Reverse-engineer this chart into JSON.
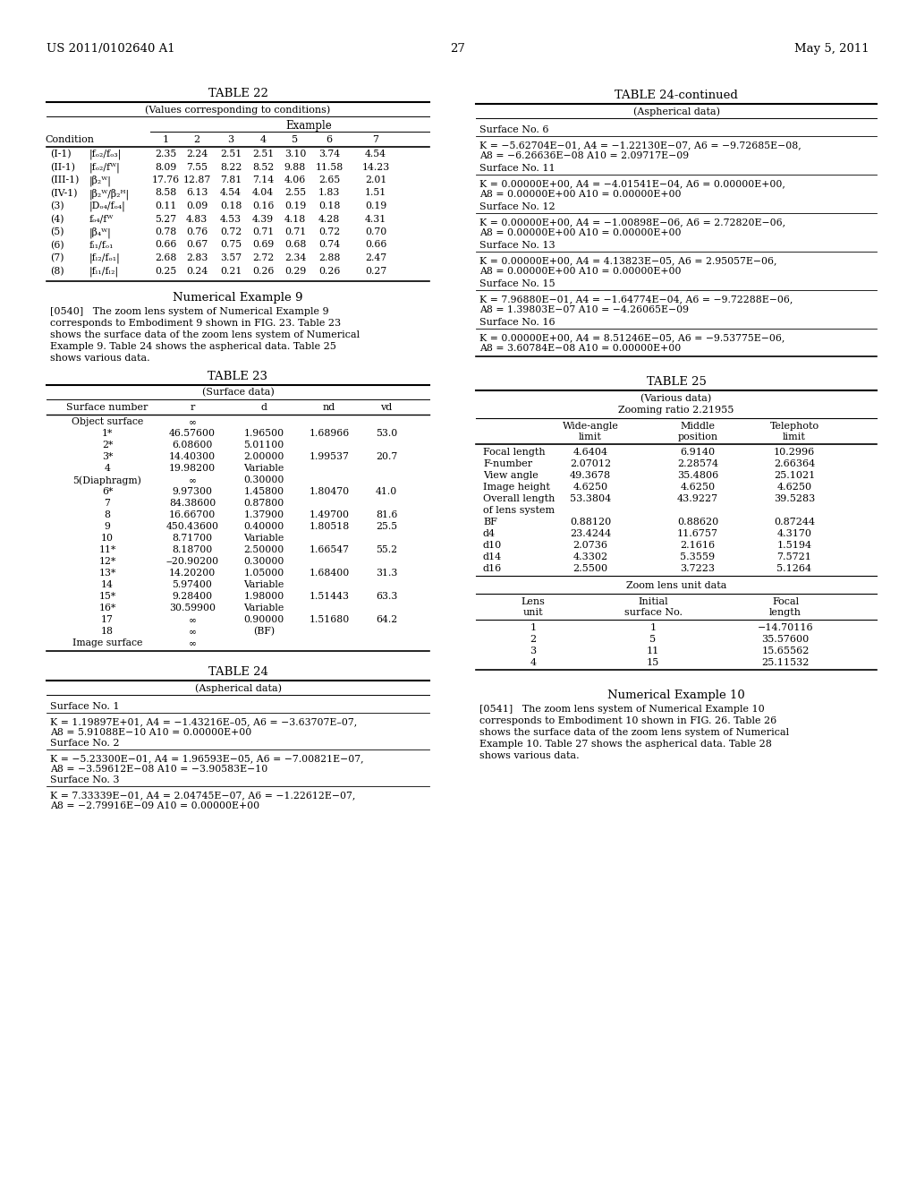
{
  "page_header_left": "US 2011/0102640 A1",
  "page_header_right": "May 5, 2011",
  "page_number": "27",
  "table22": {
    "title": "TABLE 22",
    "subtitle": "(Values corresponding to conditions)",
    "rows": [
      [
        "(I-1)",
        "|fₒ₂/fₒ₃|",
        "2.35",
        "2.24",
        "2.51",
        "2.51",
        "3.10",
        "3.74",
        "4.54"
      ],
      [
        "(II-1)",
        "|fₒ₂/fᵂ|",
        "8.09",
        "7.55",
        "8.22",
        "8.52",
        "9.88",
        "11.58",
        "14.23"
      ],
      [
        "(III-1)",
        "|β₂ᵂ|",
        "17.76",
        "12.87",
        "7.81",
        "7.14",
        "4.06",
        "2.65",
        "2.01"
      ],
      [
        "(IV-1)",
        "|β₂ᵂ/β₂ᴴ|",
        "8.58",
        "6.13",
        "4.54",
        "4.04",
        "2.55",
        "1.83",
        "1.51"
      ],
      [
        "(3)",
        "|Dₒ₄/fₒ₄|",
        "0.11",
        "0.09",
        "0.18",
        "0.16",
        "0.19",
        "0.18",
        "0.19"
      ],
      [
        "(4)",
        "fₒ₄/fᵂ",
        "5.27",
        "4.83",
        "4.53",
        "4.39",
        "4.18",
        "4.28",
        "4.31"
      ],
      [
        "(5)",
        "|β₄ᵂ|",
        "0.78",
        "0.76",
        "0.72",
        "0.71",
        "0.71",
        "0.72",
        "0.70"
      ],
      [
        "(6)",
        "fₗ₁/fₒ₁",
        "0.66",
        "0.67",
        "0.75",
        "0.69",
        "0.68",
        "0.74",
        "0.66"
      ],
      [
        "(7)",
        "|fₗ₂/fₒ₁|",
        "2.68",
        "2.83",
        "3.57",
        "2.72",
        "2.34",
        "2.88",
        "2.47"
      ],
      [
        "(8)",
        "|fₗ₁/fₗ₂|",
        "0.25",
        "0.24",
        "0.21",
        "0.26",
        "0.29",
        "0.26",
        "0.27"
      ]
    ]
  },
  "ne9_lines": [
    "[0540]   The zoom lens system of Numerical Example 9",
    "corresponds to Embodiment 9 shown in FIG. 23. Table 23",
    "shows the surface data of the zoom lens system of Numerical",
    "Example 9. Table 24 shows the aspherical data. Table 25",
    "shows various data."
  ],
  "table23_rows": [
    [
      "Object surface",
      "∞",
      "",
      "",
      ""
    ],
    [
      "1*",
      "46.57600",
      "1.96500",
      "1.68966",
      "53.0"
    ],
    [
      "2*",
      "6.08600",
      "5.01100",
      "",
      ""
    ],
    [
      "3*",
      "14.40300",
      "2.00000",
      "1.99537",
      "20.7"
    ],
    [
      "4",
      "19.98200",
      "Variable",
      "",
      ""
    ],
    [
      "5(Diaphragm)",
      "∞",
      "0.30000",
      "",
      ""
    ],
    [
      "6*",
      "9.97300",
      "1.45800",
      "1.80470",
      "41.0"
    ],
    [
      "7",
      "84.38600",
      "0.87800",
      "",
      ""
    ],
    [
      "8",
      "16.66700",
      "1.37900",
      "1.49700",
      "81.6"
    ],
    [
      "9",
      "450.43600",
      "0.40000",
      "1.80518",
      "25.5"
    ],
    [
      "10",
      "8.71700",
      "Variable",
      "",
      ""
    ],
    [
      "11*",
      "8.18700",
      "2.50000",
      "1.66547",
      "55.2"
    ],
    [
      "12*",
      "‒20.90200",
      "0.30000",
      "",
      ""
    ],
    [
      "13*",
      "14.20200",
      "1.05000",
      "1.68400",
      "31.3"
    ],
    [
      "14",
      "5.97400",
      "Variable",
      "",
      ""
    ],
    [
      "15*",
      "9.28400",
      "1.98000",
      "1.51443",
      "63.3"
    ],
    [
      "16*",
      "30.59900",
      "Variable",
      "",
      ""
    ],
    [
      "17",
      "∞",
      "0.90000",
      "1.51680",
      "64.2"
    ],
    [
      "18",
      "∞",
      "(BF)",
      "",
      ""
    ],
    [
      "Image surface",
      "∞",
      "",
      "",
      ""
    ]
  ],
  "table24_surfaces": [
    {
      "label": "Surface No. 1",
      "lines": [
        "K = 1.19897E+01, A4 = −1.43216E–05, A6 = −3.63707E–07,",
        "A8 = 5.91088E−10 A10 = 0.00000E+00"
      ]
    },
    {
      "label": "Surface No. 2",
      "lines": [
        "K = −5.23300E−01, A4 = 1.96593E−05, A6 = −7.00821E−07,",
        "A8 = −3.59612E−08 A10 = −3.90583E−10"
      ]
    },
    {
      "label": "Surface No. 3",
      "lines": [
        "K = 7.33339E−01, A4 = 2.04745E−07, A6 = −1.22612E−07,",
        "A8 = −2.79916E−09 A10 = 0.00000E+00"
      ]
    }
  ],
  "table24c_surfaces": [
    {
      "label": "Surface No. 6",
      "lines": [
        "K = −5.62704E−01, A4 = −1.22130E−07, A6 = −9.72685E−08,",
        "A8 = −6.26636E−08 A10 = 2.09717E−09"
      ]
    },
    {
      "label": "Surface No. 11",
      "lines": [
        "K = 0.00000E+00, A4 = −4.01541E−04, A6 = 0.00000E+00,",
        "A8 = 0.00000E+00 A10 = 0.00000E+00"
      ]
    },
    {
      "label": "Surface No. 12",
      "lines": [
        "K = 0.00000E+00, A4 = −1.00898E−06, A6 = 2.72820E−06,",
        "A8 = 0.00000E+00 A10 = 0.00000E+00"
      ]
    },
    {
      "label": "Surface No. 13",
      "lines": [
        "K = 0.00000E+00, A4 = 4.13823E−05, A6 = 2.95057E−06,",
        "A8 = 0.00000E+00 A10 = 0.00000E+00"
      ]
    },
    {
      "label": "Surface No. 15",
      "lines": [
        "K = 7.96880E−01, A4 = −1.64774E−04, A6 = −9.72288E−06,",
        "A8 = 1.39803E−07 A10 = −4.26065E−09"
      ]
    },
    {
      "label": "Surface No. 16",
      "lines": [
        "K = 0.00000E+00, A4 = 8.51246E−05, A6 = −9.53775E−06,",
        "A8 = 3.60784E−08 A10 = 0.00000E+00"
      ]
    }
  ],
  "table25_rows": [
    [
      "Focal length",
      "4.6404",
      "6.9140",
      "10.2996"
    ],
    [
      "F-number",
      "2.07012",
      "2.28574",
      "2.66364"
    ],
    [
      "View angle",
      "49.3678",
      "35.4806",
      "25.1021"
    ],
    [
      "Image height",
      "4.6250",
      "4.6250",
      "4.6250"
    ],
    [
      "Overall length",
      "53.3804",
      "43.9227",
      "39.5283"
    ],
    [
      "of lens system",
      "",
      "",
      ""
    ],
    [
      "BF",
      "0.88120",
      "0.88620",
      "0.87244"
    ],
    [
      "d4",
      "23.4244",
      "11.6757",
      "4.3170"
    ],
    [
      "d10",
      "2.0736",
      "2.1616",
      "1.5194"
    ],
    [
      "d14",
      "4.3302",
      "5.3559",
      "7.5721"
    ],
    [
      "d16",
      "2.5500",
      "3.7223",
      "5.1264"
    ]
  ],
  "zoom_unit_rows": [
    [
      "1",
      "1",
      "−14.70116"
    ],
    [
      "2",
      "5",
      "35.57600"
    ],
    [
      "3",
      "11",
      "15.65562"
    ],
    [
      "4",
      "15",
      "25.11532"
    ]
  ],
  "ne10_lines": [
    "[0541]   The zoom lens system of Numerical Example 10",
    "corresponds to Embodiment 10 shown in FIG. 26. Table 26",
    "shows the surface data of the zoom lens system of Numerical",
    "Example 10. Table 27 shows the aspherical data. Table 28",
    "shows various data."
  ]
}
